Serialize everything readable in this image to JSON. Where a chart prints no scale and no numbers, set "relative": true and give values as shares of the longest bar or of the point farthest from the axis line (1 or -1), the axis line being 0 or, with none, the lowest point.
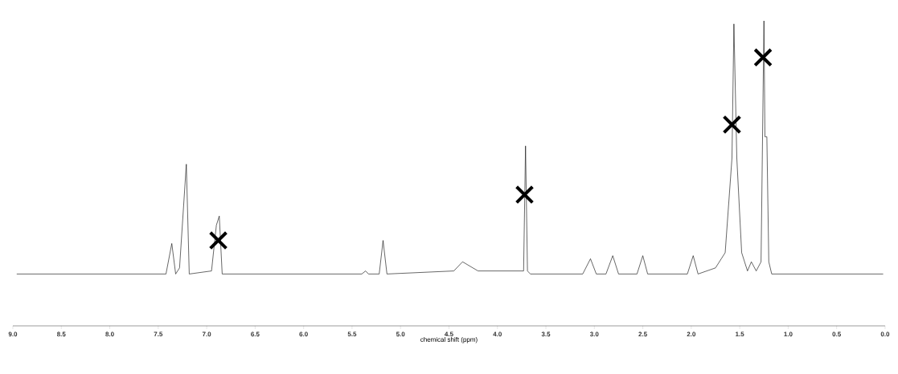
{
  "chart_data": {
    "type": "line",
    "relative": true,
    "xlabel": "chemical shift (ppm)",
    "xlim": [
      9.0,
      0.0
    ],
    "xticks": [
      {
        "value": 9.0,
        "label": "9.0"
      },
      {
        "value": 8.5,
        "label": "8.5"
      },
      {
        "value": 8.0,
        "label": "8.0"
      },
      {
        "value": 7.5,
        "label": "7.5"
      },
      {
        "value": 7.0,
        "label": "7.0"
      },
      {
        "value": 6.5,
        "label": "6.5"
      },
      {
        "value": 6.0,
        "label": "6.0"
      },
      {
        "value": 5.5,
        "label": "5.5"
      },
      {
        "value": 5.0,
        "label": "5.0"
      },
      {
        "value": 4.5,
        "label": "4.5"
      },
      {
        "value": 4.0,
        "label": "4.0"
      },
      {
        "value": 3.5,
        "label": "3.5"
      },
      {
        "value": 3.0,
        "label": "3.0"
      },
      {
        "value": 2.5,
        "label": "2.5"
      },
      {
        "value": 2.0,
        "label": "2.0"
      },
      {
        "value": 1.5,
        "label": "1.5"
      },
      {
        "value": 1.0,
        "label": "1.0"
      },
      {
        "value": 0.5,
        "label": "0.5"
      },
      {
        "value": 0.0,
        "label": "0.0"
      }
    ],
    "series": [
      {
        "color": "#000000",
        "x": [
          8.96,
          7.42,
          7.36,
          7.32,
          7.28,
          7.21,
          7.18,
          6.95,
          6.9,
          6.87,
          6.84,
          5.4,
          5.36,
          5.33,
          5.22,
          5.18,
          5.14,
          4.45,
          4.36,
          4.2,
          3.8,
          3.73,
          3.71,
          3.69,
          3.66,
          3.12,
          3.04,
          2.98,
          2.88,
          2.81,
          2.75,
          2.56,
          2.5,
          2.45,
          2.04,
          1.98,
          1.93,
          1.75,
          1.65,
          1.58,
          1.56,
          1.53,
          1.48,
          1.42,
          1.38,
          1.33,
          1.28,
          1.25,
          1.24,
          1.22,
          1.2,
          1.17,
          0.02
        ],
        "values": [
          0.17,
          0.17,
          0.27,
          0.17,
          0.19,
          0.53,
          0.17,
          0.18,
          0.33,
          0.36,
          0.17,
          0.17,
          0.18,
          0.17,
          0.17,
          0.28,
          0.17,
          0.18,
          0.21,
          0.18,
          0.18,
          0.18,
          0.59,
          0.18,
          0.17,
          0.17,
          0.22,
          0.17,
          0.17,
          0.23,
          0.17,
          0.17,
          0.23,
          0.17,
          0.17,
          0.23,
          0.17,
          0.19,
          0.24,
          0.55,
          0.99,
          0.55,
          0.24,
          0.18,
          0.21,
          0.18,
          0.21,
          1.0,
          0.62,
          0.62,
          0.21,
          0.17,
          0.17
        ]
      },
      {
        "type": "scatter",
        "color": "#000000",
        "marker": "cross",
        "x": [
          6.88,
          3.72,
          1.58,
          1.26
        ],
        "values": [
          0.28,
          0.43,
          0.66,
          0.88
        ]
      }
    ]
  }
}
